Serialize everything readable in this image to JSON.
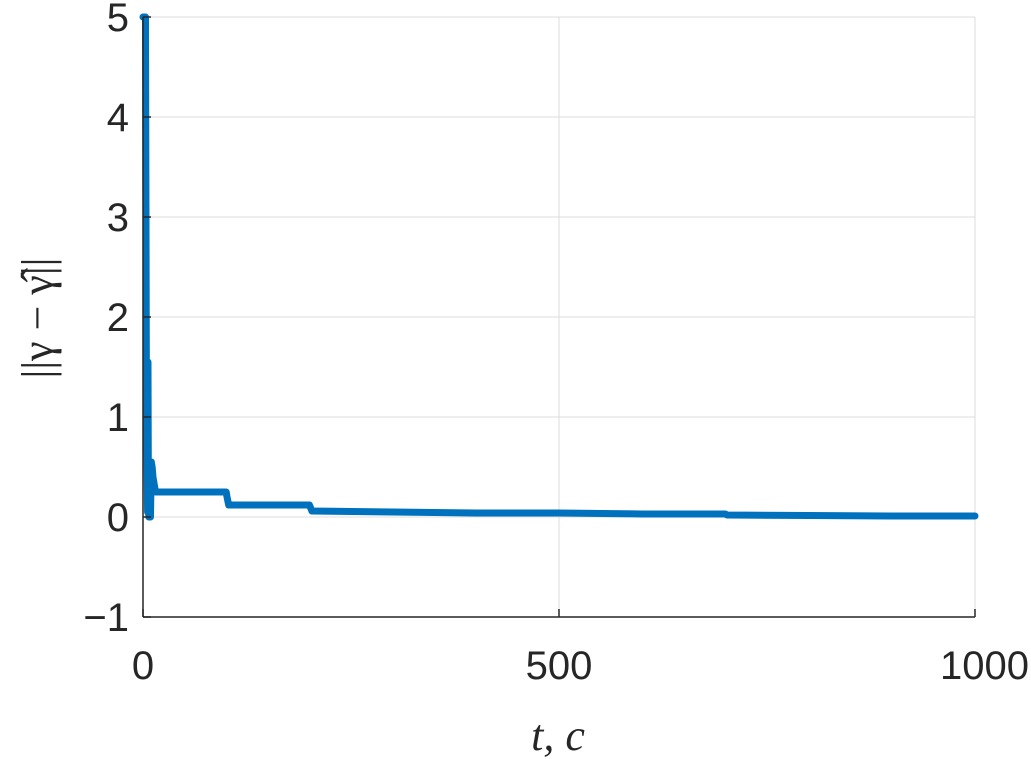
{
  "chart_data": {
    "type": "line",
    "title": "",
    "xlabel": "t, c",
    "ylabel": "||γ − γ̂||",
    "xlim": [
      0,
      1000
    ],
    "ylim": [
      -1,
      5
    ],
    "xticks": [
      0,
      500,
      1000
    ],
    "yticks": [
      -1,
      0,
      1,
      2,
      3,
      4,
      5
    ],
    "xtick_labels": [
      "0",
      "500",
      "1000"
    ],
    "ytick_labels": [
      "−1",
      "0",
      "1",
      "2",
      "3",
      "4",
      "5"
    ],
    "grid": true,
    "series": [
      {
        "color": "#0072BD",
        "x": [
          0,
          3,
          4,
          5,
          5.5,
          6,
          6.5,
          7,
          7.5,
          8,
          9,
          10,
          11,
          12,
          13,
          14,
          15,
          18,
          100,
          101,
          103,
          200,
          201,
          203,
          300,
          400,
          500,
          600,
          700,
          702,
          800,
          900,
          1000
        ],
        "y": [
          5.0,
          5.0,
          1.6,
          0.5,
          0.05,
          1.55,
          0.2,
          0.0,
          0.05,
          0.0,
          0.0,
          0.55,
          0.5,
          0.4,
          0.35,
          0.3,
          0.25,
          0.25,
          0.25,
          0.2,
          0.12,
          0.12,
          0.1,
          0.06,
          0.05,
          0.04,
          0.04,
          0.03,
          0.03,
          0.02,
          0.015,
          0.01,
          0.01
        ]
      }
    ]
  }
}
